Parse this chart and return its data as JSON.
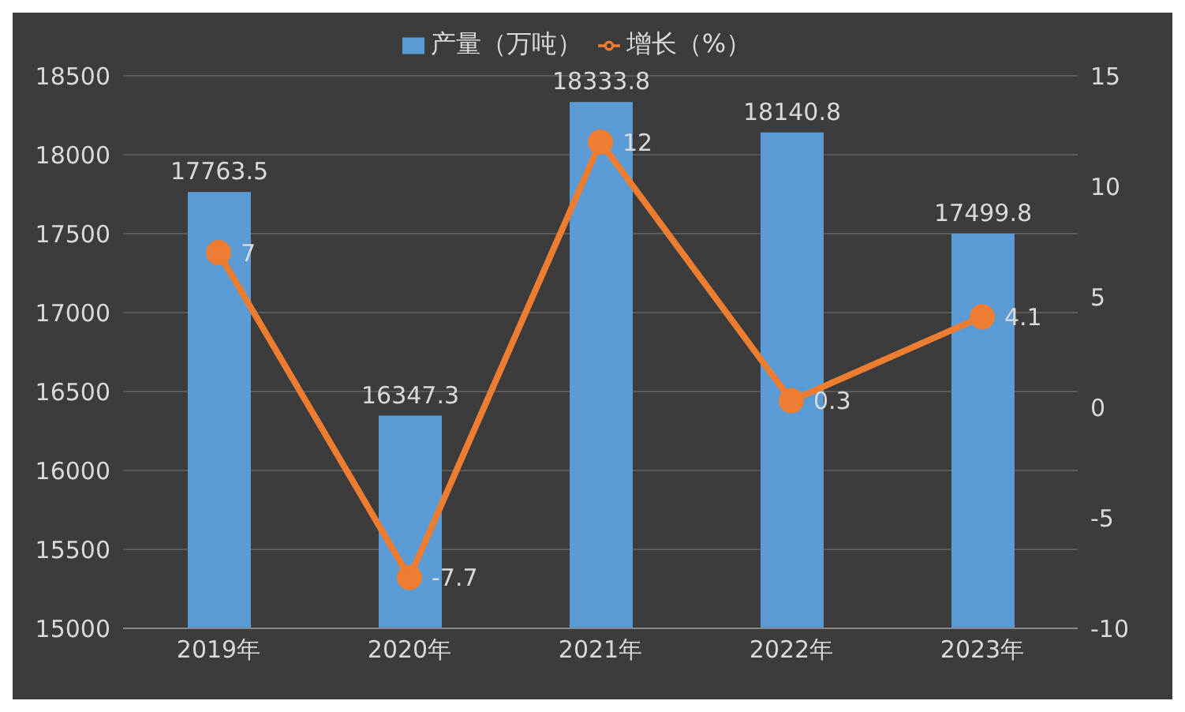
{
  "chart_data": {
    "type": "bar",
    "categories": [
      "2019年",
      "2020年",
      "2021年",
      "2022年",
      "2023年"
    ],
    "series": [
      {
        "name": "产量（万吨）",
        "color": "#5b9bd5",
        "values": [
          17763.5,
          16347.3,
          18333.8,
          18140.8,
          17499.8
        ]
      },
      {
        "name": "增长（%）",
        "type": "line",
        "axis": "y2",
        "color": "#ed7d31",
        "values": [
          7,
          -7.7,
          12,
          0.3,
          4.1
        ]
      }
    ],
    "ylim": [
      15000,
      18500
    ],
    "yticks": [
      15000,
      15500,
      16000,
      16500,
      17000,
      17500,
      18000,
      18500
    ],
    "y2lim": [
      -10,
      15
    ],
    "y2ticks": [
      -10,
      -5,
      0,
      5,
      10,
      15
    ],
    "grid": "y",
    "legend": "top",
    "marker": "circle",
    "data_labels": true
  }
}
